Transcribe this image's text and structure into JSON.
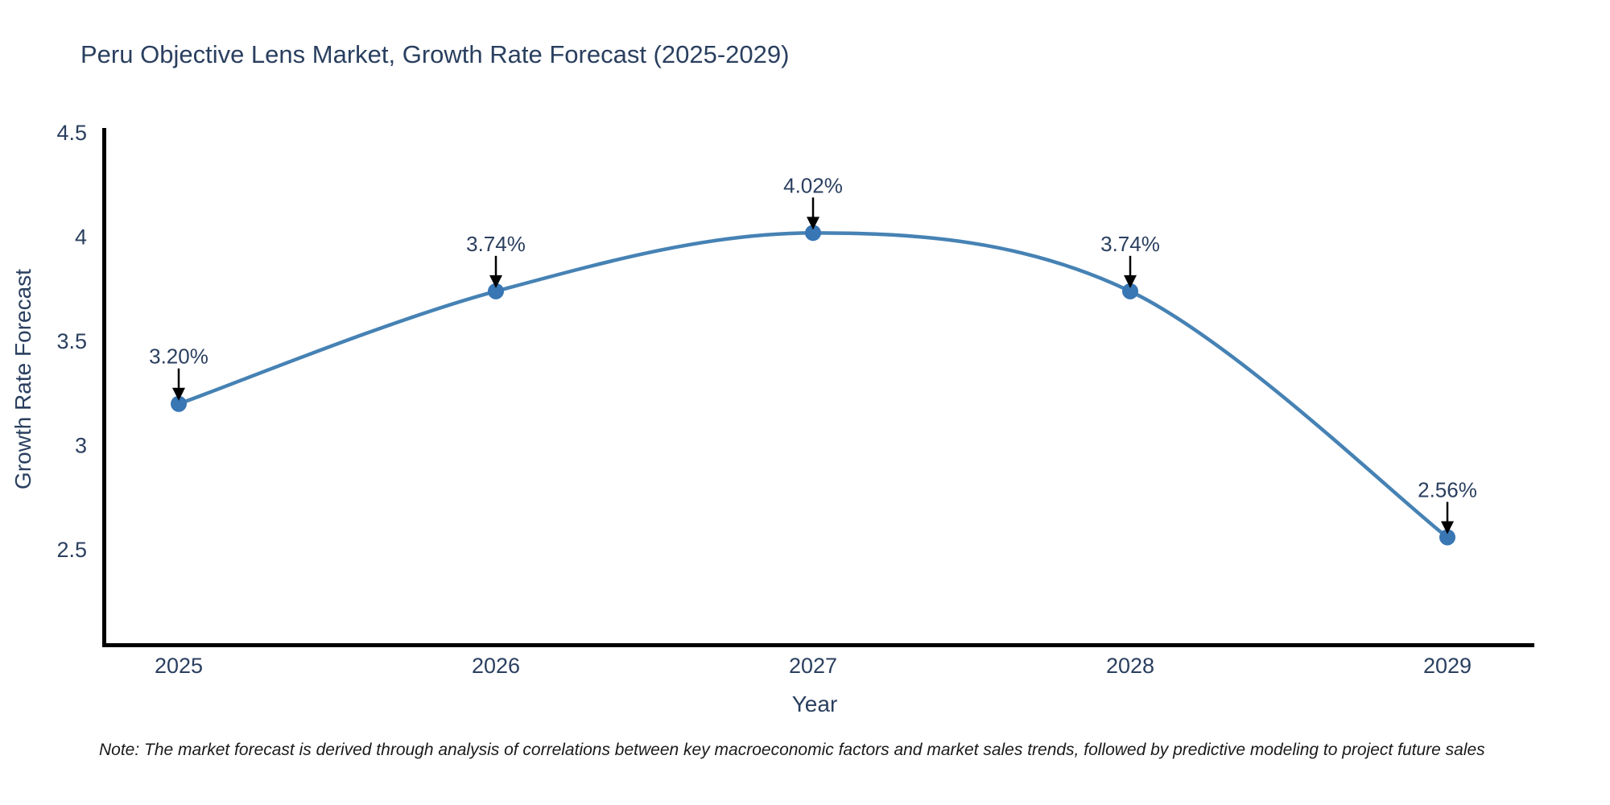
{
  "title": "Peru Objective Lens Market, Growth Rate Forecast (2025-2029)",
  "note": "Note: The market forecast is derived through analysis of correlations between key macroeconomic factors and market sales trends, followed by predictive modeling to project future sales",
  "chart_data": {
    "type": "line",
    "line_shape": "spline",
    "title": "Peru Objective Lens Market, Growth Rate Forecast (2025-2029)",
    "xlabel": "Year",
    "ylabel": "Growth Rate Forecast",
    "x": [
      2025,
      2026,
      2027,
      2028,
      2029
    ],
    "series": [
      {
        "name": "Growth Rate Forecast",
        "values": [
          3.2,
          3.74,
          4.02,
          3.74,
          2.56
        ]
      }
    ],
    "point_labels": [
      "3.20%",
      "3.74%",
      "4.02%",
      "3.74%",
      "2.56%"
    ],
    "x_tick_labels": [
      "2025",
      "2026",
      "2027",
      "2028",
      "2029"
    ],
    "y_ticks": [
      2.5,
      3,
      3.5,
      4,
      4.5
    ],
    "ylim": [
      2.04,
      4.52
    ],
    "grid": false,
    "legend": "none",
    "colors": {
      "line": "#4682B4",
      "marker": "#3876B4",
      "annotation_arrow": "#000000",
      "axis_line": "#000000",
      "text": "#2a3f5f",
      "note_text": "#1a1a1a",
      "background": "#ffffff"
    }
  }
}
